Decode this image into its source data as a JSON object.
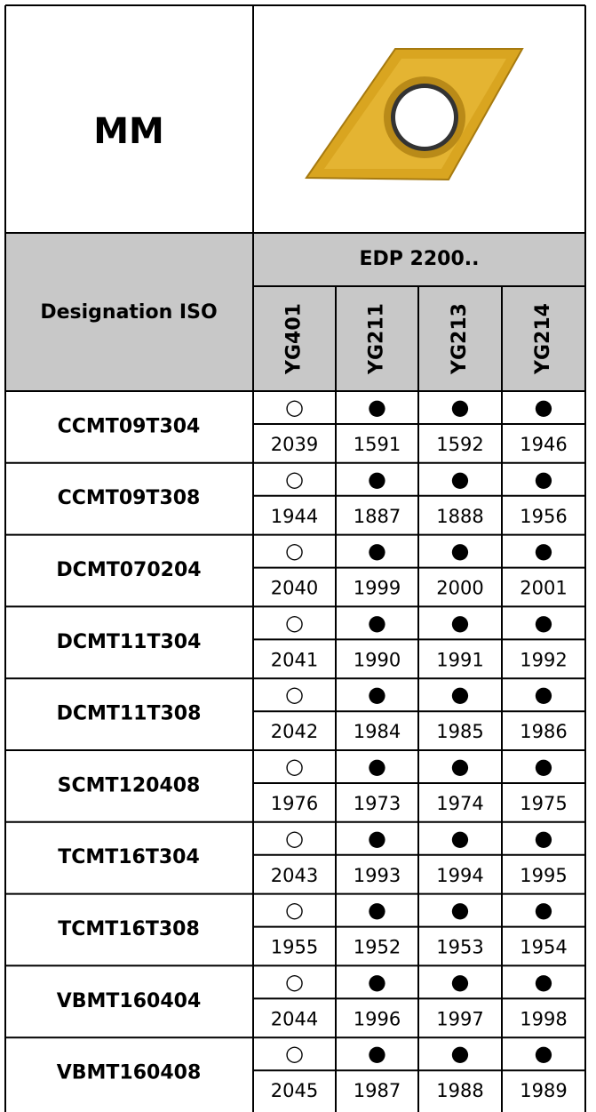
{
  "header": {
    "title": "MM",
    "column_label": "Designation ISO",
    "edp_label": "EDP 2200..",
    "grades": [
      "YG401",
      "YG211",
      "YG213",
      "YG214"
    ]
  },
  "rows": [
    {
      "designation": "CCMT09T304",
      "symbols": [
        "○",
        "●",
        "●",
        "●"
      ],
      "edp": [
        2039,
        1591,
        1592,
        1946
      ]
    },
    {
      "designation": "CCMT09T308",
      "symbols": [
        "○",
        "●",
        "●",
        "●"
      ],
      "edp": [
        1944,
        1887,
        1888,
        1956
      ]
    },
    {
      "designation": "DCMT070204",
      "symbols": [
        "○",
        "●",
        "●",
        "●"
      ],
      "edp": [
        2040,
        1999,
        2000,
        2001
      ]
    },
    {
      "designation": "DCMT11T304",
      "symbols": [
        "○",
        "●",
        "●",
        "●"
      ],
      "edp": [
        2041,
        1990,
        1991,
        1992
      ]
    },
    {
      "designation": "DCMT11T308",
      "symbols": [
        "○",
        "●",
        "●",
        "●"
      ],
      "edp": [
        2042,
        1984,
        1985,
        1986
      ]
    },
    {
      "designation": "SCMT120408",
      "symbols": [
        "○",
        "●",
        "●",
        "●"
      ],
      "edp": [
        1976,
        1973,
        1974,
        1975
      ]
    },
    {
      "designation": "TCMT16T304",
      "symbols": [
        "○",
        "●",
        "●",
        "●"
      ],
      "edp": [
        2043,
        1993,
        1994,
        1995
      ]
    },
    {
      "designation": "TCMT16T308",
      "symbols": [
        "○",
        "●",
        "●",
        "●"
      ],
      "edp": [
        1955,
        1952,
        1953,
        1954
      ]
    },
    {
      "designation": "VBMT160404",
      "symbols": [
        "○",
        "●",
        "●",
        "●"
      ],
      "edp": [
        2044,
        1996,
        1997,
        1998
      ]
    },
    {
      "designation": "VBMT160408",
      "symbols": [
        "○",
        "●",
        "●",
        "●"
      ],
      "edp": [
        2045,
        1987,
        1988,
        1989
      ]
    }
  ]
}
